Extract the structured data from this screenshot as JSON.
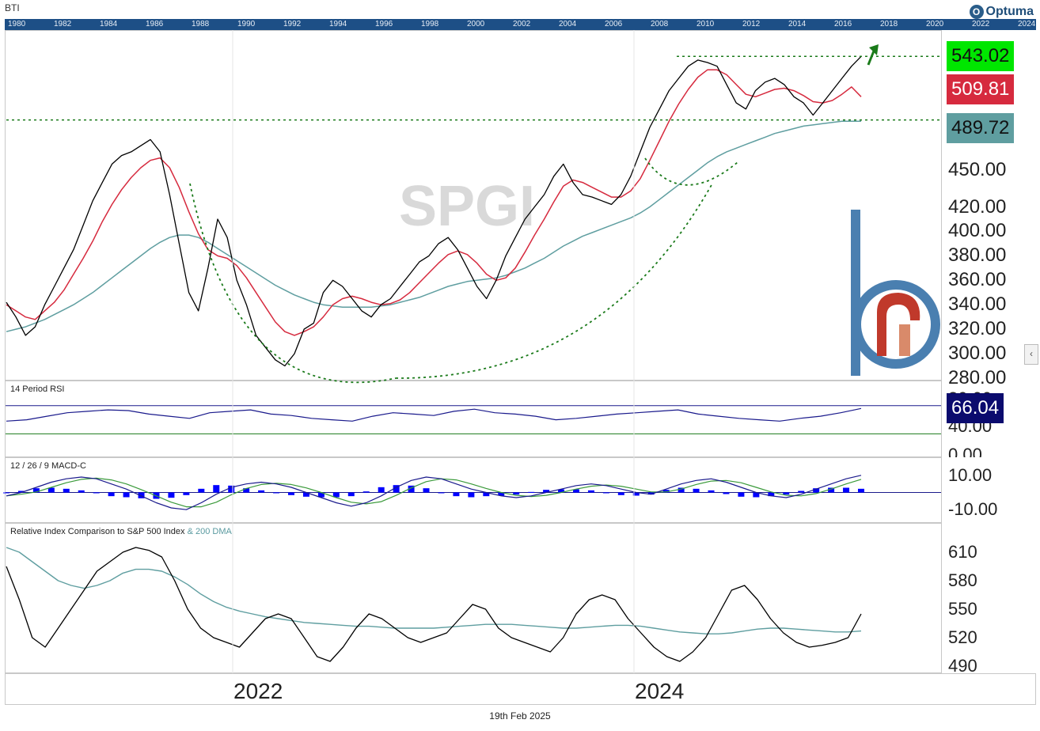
{
  "header": {
    "symbol": "BTI",
    "brand": "Optuma",
    "brand_mark": "O"
  },
  "timeline_years": [
    "1980",
    "1982",
    "1984",
    "1986",
    "1988",
    "1990",
    "1992",
    "1994",
    "1996",
    "1998",
    "2000",
    "2002",
    "2004",
    "2006",
    "2008",
    "2010",
    "2012",
    "2014",
    "2016",
    "2018",
    "2020",
    "2022",
    "2024"
  ],
  "watermark": "SPGI",
  "price_panel": {
    "ticks": [
      "450.00",
      "420.00",
      "400.00",
      "380.00",
      "360.00",
      "340.00",
      "320.00",
      "300.00",
      "280.00"
    ],
    "tags": [
      {
        "label": "543.02",
        "color": "#00e600"
      },
      {
        "label": "509.81",
        "color": "#d62a3e"
      },
      {
        "label": "489.72",
        "color": "#5f9ea0"
      }
    ]
  },
  "rsi_panel": {
    "title": "14 Period RSI",
    "ticks": [
      "80.00",
      "40.00",
      "0.00"
    ],
    "tag": "66.04",
    "tag_color": "#0b0b6e"
  },
  "macd_panel": {
    "title": "12 / 26 / 9 MACD-C",
    "ticks": [
      "10.00",
      "-10.00"
    ]
  },
  "rel_panel": {
    "title": "Relative Index Comparison to S&P 500 Index",
    "subtitle": "& 200 DMA",
    "ticks": [
      "610",
      "580",
      "550",
      "520",
      "490"
    ]
  },
  "date_axis": {
    "years": [
      "2022",
      "2024"
    ]
  },
  "footer": {
    "date": "19th Feb 2025"
  },
  "scroll_glyph": "‹",
  "colors": {
    "price": "#000000",
    "ma_short": "#d62a3e",
    "ma_long": "#5f9ea0",
    "rsi": "#1a1a8c",
    "macd_line": "#1a1a8c",
    "macd_signal": "#3a9a3a",
    "macd_hist": "#0000ff",
    "annotation": "#1a7a1a"
  },
  "chart_data": [
    {
      "type": "line",
      "title": "BTI",
      "x_range": [
        "2021-01",
        "2025-02"
      ],
      "ylim": [
        280,
        560
      ],
      "series": [
        {
          "values": [
            342,
            330,
            315,
            322,
            340,
            355,
            370,
            385,
            405,
            425,
            440,
            455,
            462,
            465,
            470,
            475,
            465,
            430,
            390,
            350,
            335,
            370,
            410,
            395,
            360,
            340,
            315,
            305,
            295,
            290,
            300,
            320,
            325,
            350,
            360,
            355,
            345,
            335,
            330,
            340,
            345,
            355,
            365,
            375,
            380,
            390,
            395,
            385,
            370,
            355,
            345,
            360,
            380,
            395,
            410,
            420,
            430,
            445,
            455,
            440,
            430,
            428,
            425,
            422,
            430,
            445,
            465,
            485,
            500,
            515,
            525,
            535,
            540,
            538,
            535,
            520,
            505,
            500,
            515,
            522,
            525,
            520,
            510,
            505,
            495,
            505,
            515,
            525,
            535,
            543
          ]
        },
        {
          "values": [
            340,
            335,
            330,
            328,
            335,
            342,
            352,
            365,
            378,
            392,
            408,
            422,
            434,
            444,
            452,
            458,
            460,
            452,
            436,
            416,
            398,
            385,
            380,
            378,
            372,
            362,
            350,
            338,
            326,
            318,
            315,
            318,
            322,
            330,
            340,
            345,
            347,
            345,
            342,
            340,
            341,
            344,
            350,
            358,
            366,
            374,
            381,
            384,
            381,
            374,
            365,
            360,
            362,
            370,
            383,
            397,
            410,
            424,
            437,
            442,
            440,
            436,
            432,
            428,
            428,
            433,
            443,
            458,
            474,
            490,
            504,
            516,
            526,
            532,
            532,
            528,
            520,
            512,
            510,
            513,
            516,
            517,
            515,
            511,
            506,
            505,
            507,
            512,
            518,
            510
          ]
        },
        {
          "values": [
            318,
            320,
            322,
            325,
            328,
            332,
            336,
            340,
            345,
            350,
            356,
            362,
            368,
            374,
            380,
            386,
            391,
            395,
            397,
            397,
            395,
            391,
            386,
            381,
            376,
            371,
            366,
            361,
            356,
            352,
            348,
            345,
            342,
            340,
            339,
            338,
            338,
            338,
            338,
            339,
            340,
            342,
            344,
            346,
            349,
            352,
            355,
            357,
            359,
            360,
            361,
            362,
            364,
            367,
            370,
            374,
            378,
            383,
            388,
            392,
            396,
            399,
            402,
            405,
            408,
            411,
            415,
            420,
            426,
            432,
            438,
            444,
            450,
            456,
            461,
            465,
            468,
            471,
            474,
            477,
            480,
            482,
            484,
            486,
            487,
            488,
            489,
            490,
            490,
            490
          ]
        }
      ]
    },
    {
      "type": "line",
      "title": "14 Period RSI",
      "ylim": [
        0,
        90
      ],
      "series": [
        {
          "values": [
            48,
            50,
            55,
            60,
            62,
            64,
            63,
            58,
            55,
            52,
            60,
            62,
            64,
            58,
            56,
            52,
            50,
            48,
            55,
            60,
            58,
            56,
            62,
            65,
            60,
            58,
            55,
            50,
            52,
            55,
            58,
            60,
            62,
            64,
            58,
            55,
            52,
            50,
            48,
            52,
            55,
            60,
            66
          ]
        }
      ]
    },
    {
      "type": "line",
      "title": "12 / 26 / 9 MACD-C",
      "ylim": [
        -15,
        15
      ],
      "series": [
        {
          "values": [
            -2,
            0,
            3,
            6,
            8,
            9,
            8,
            5,
            2,
            -2,
            -6,
            -9,
            -10,
            -6,
            -1,
            3,
            5,
            6,
            5,
            3,
            0,
            -3,
            -6,
            -8,
            -6,
            -2,
            3,
            7,
            9,
            8,
            5,
            2,
            0,
            -2,
            -3,
            -2,
            0,
            2,
            4,
            5,
            4,
            2,
            0,
            -1,
            2,
            5,
            7,
            8,
            6,
            3,
            0,
            -2,
            -3,
            -1,
            2,
            5,
            8,
            10
          ]
        }
      ]
    },
    {
      "type": "line",
      "title": "Relative Index Comparison to S&P 500 Index",
      "ylim": [
        485,
        625
      ],
      "series": [
        {
          "values": [
            595,
            560,
            520,
            510,
            530,
            550,
            570,
            590,
            600,
            610,
            615,
            612,
            605,
            580,
            550,
            530,
            520,
            515,
            510,
            525,
            540,
            545,
            540,
            520,
            500,
            495,
            510,
            530,
            545,
            540,
            530,
            520,
            515,
            520,
            525,
            540,
            555,
            550,
            530,
            520,
            515,
            510,
            505,
            520,
            545,
            560,
            565,
            560,
            540,
            525,
            510,
            500,
            495,
            505,
            520,
            545,
            570,
            575,
            560,
            540,
            525,
            515,
            510,
            512,
            515,
            520,
            545
          ]
        },
        {
          "values": [
            615,
            610,
            600,
            590,
            580,
            575,
            572,
            575,
            580,
            588,
            592,
            592,
            590,
            584,
            576,
            566,
            558,
            552,
            548,
            545,
            542,
            540,
            538,
            536,
            535,
            534,
            533,
            532,
            532,
            531,
            530,
            530,
            530,
            530,
            531,
            532,
            533,
            534,
            534,
            534,
            533,
            532,
            531,
            530,
            530,
            531,
            532,
            533,
            533,
            532,
            530,
            528,
            526,
            525,
            524,
            524,
            525,
            527,
            529,
            530,
            530,
            529,
            528,
            527,
            526,
            526,
            527
          ]
        }
      ]
    }
  ]
}
